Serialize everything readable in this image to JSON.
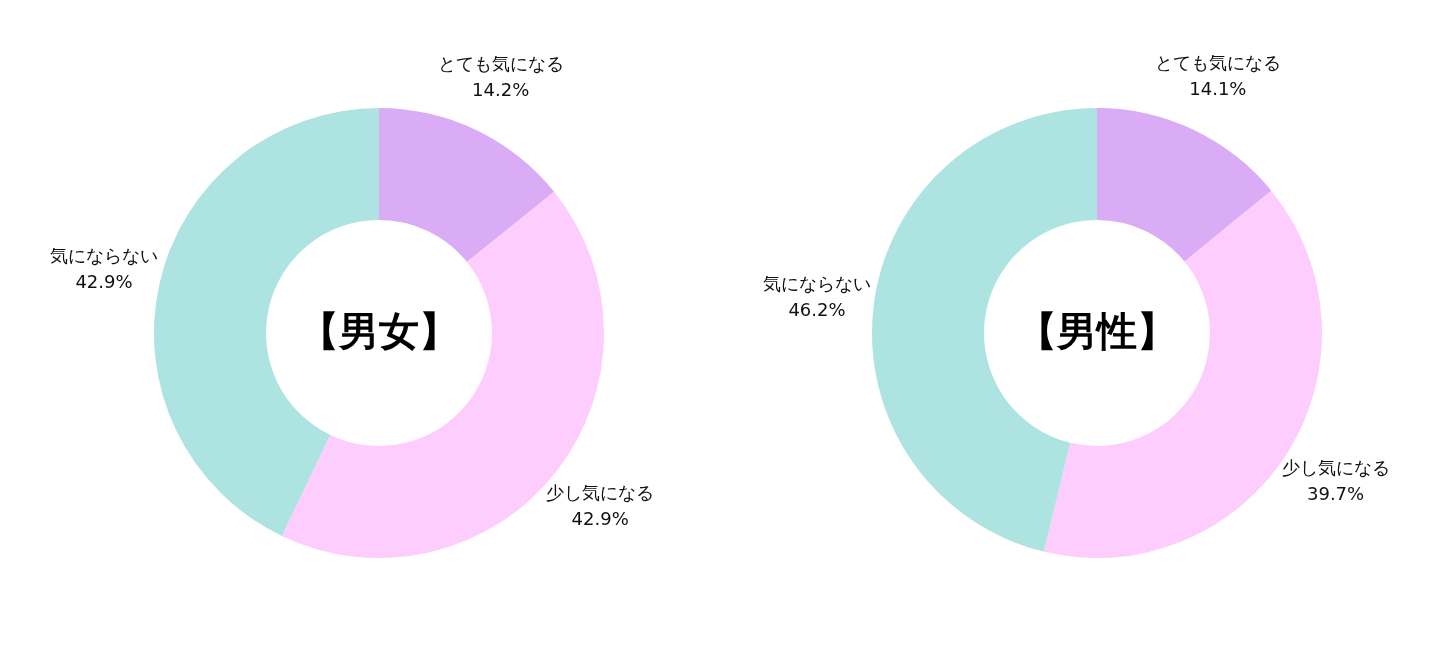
{
  "chart_data": [
    {
      "type": "donut",
      "title": "【男女】",
      "categories": [
        "とても気になる",
        "少し気になる",
        "気にならない"
      ],
      "values": [
        14.2,
        42.9,
        42.9
      ],
      "colors": [
        "#d9acf5",
        "#fdcdfd",
        "#ade3e1"
      ],
      "value_labels": [
        "14.2%",
        "42.9%",
        "42.9%"
      ]
    },
    {
      "type": "donut",
      "title": "【男性】",
      "categories": [
        "とても気になる",
        "少し気になる",
        "気にならない"
      ],
      "values": [
        14.1,
        39.7,
        46.2
      ],
      "colors": [
        "#d9acf5",
        "#fdcdfd",
        "#ade3e1"
      ],
      "value_labels": [
        "14.1%",
        "39.7%",
        "46.2%"
      ]
    }
  ]
}
